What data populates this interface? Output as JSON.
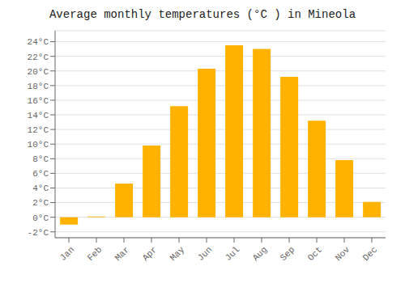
{
  "chart_data": {
    "type": "bar",
    "title": "Average monthly temperatures (°C ) in Mineola",
    "categories": [
      "Jan",
      "Feb",
      "Mar",
      "Apr",
      "May",
      "Jun",
      "Jul",
      "Aug",
      "Sep",
      "Oct",
      "Nov",
      "Dec"
    ],
    "values": [
      -1.0,
      0.1,
      4.6,
      9.8,
      15.2,
      20.3,
      23.5,
      23.0,
      19.2,
      13.2,
      7.8,
      2.1
    ],
    "color": "#FFB300",
    "ylim": [
      -2.8,
      25.5
    ],
    "yticks": [
      {
        "value": -2,
        "label": "-2°C"
      },
      {
        "value": 0,
        "label": "0°C"
      },
      {
        "value": 2,
        "label": "2°C"
      },
      {
        "value": 4,
        "label": "4°C"
      },
      {
        "value": 6,
        "label": "6°C"
      },
      {
        "value": 8,
        "label": "8°C"
      },
      {
        "value": 10,
        "label": "10°C"
      },
      {
        "value": 12,
        "label": "12°C"
      },
      {
        "value": 14,
        "label": "14°C"
      },
      {
        "value": 16,
        "label": "16°C"
      },
      {
        "value": 18,
        "label": "18°C"
      },
      {
        "value": 20,
        "label": "20°C"
      },
      {
        "value": 22,
        "label": "22°C"
      },
      {
        "value": 24,
        "label": "24°C"
      }
    ],
    "grid": true
  }
}
